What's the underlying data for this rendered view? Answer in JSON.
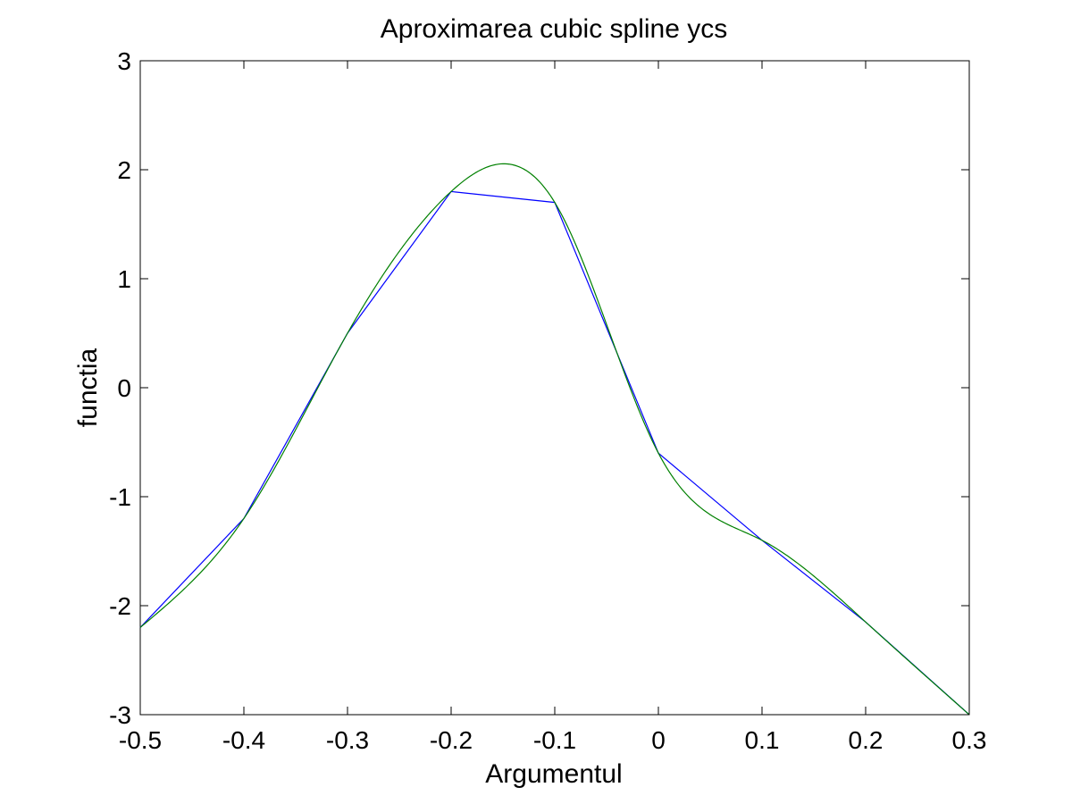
{
  "chart_data": {
    "type": "line",
    "title": "Aproximarea cubic spline ycs",
    "xlabel": "Argumentul",
    "ylabel": "functia",
    "xlim": [
      -0.5,
      0.3
    ],
    "ylim": [
      -3,
      3
    ],
    "xticks": [
      -0.5,
      -0.4,
      -0.3,
      -0.2,
      -0.1,
      0,
      0.1,
      0.2,
      0.3
    ],
    "xtick_labels": [
      "-0.5",
      "-0.4",
      "-0.3",
      "-0.2",
      "-0.1",
      "0",
      "0.1",
      "0.2",
      "0.3"
    ],
    "yticks": [
      -3,
      -2,
      -1,
      0,
      1,
      2,
      3
    ],
    "ytick_labels": [
      "-3",
      "-2",
      "-1",
      "0",
      "1",
      "2",
      "3"
    ],
    "grid": false,
    "box": true,
    "series": [
      {
        "color": "#0000ff",
        "interpolation": "linear",
        "x": [
          -0.5,
          -0.4,
          -0.3,
          -0.2,
          -0.1,
          0,
          0.1,
          0.2,
          0.3
        ],
        "y": [
          -2.2,
          -1.2,
          0.5,
          1.8,
          1.7,
          -0.6,
          -1.4,
          -2.15,
          -3.0
        ]
      },
      {
        "color": "#008000",
        "interpolation": "cubic-spline",
        "x": [
          -0.5,
          -0.4,
          -0.3,
          -0.2,
          -0.1,
          0,
          0.1,
          0.2,
          0.3
        ],
        "y": [
          -2.2,
          -1.2,
          0.5,
          1.8,
          1.7,
          -0.6,
          -1.4,
          -2.15,
          -3.0
        ]
      }
    ]
  }
}
